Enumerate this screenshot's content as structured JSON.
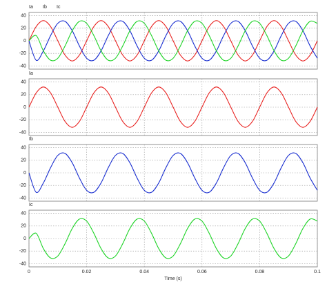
{
  "chart_data": [
    {
      "type": "line",
      "x": [
        0,
        0.0025,
        0.005,
        0.0075,
        0.01,
        0.0125,
        0.015,
        0.0175,
        0.02,
        0.0225,
        0.025,
        0.0275,
        0.03,
        0.0325,
        0.035,
        0.0375,
        0.04,
        0.0425,
        0.045,
        0.0475,
        0.05,
        0.0525,
        0.055,
        0.0575,
        0.06,
        0.0625,
        0.065,
        0.0675,
        0.07,
        0.0725,
        0.075,
        0.0775,
        0.08,
        0.0825,
        0.085,
        0.0875,
        0.09,
        0.0925,
        0.095,
        0.0975,
        0.1
      ],
      "series": [
        {
          "name": "Ia",
          "color": "#e8201e",
          "values": [
            0,
            22.6,
            32,
            22.6,
            0,
            -22.6,
            -32,
            -22.6,
            0,
            22.6,
            32,
            22.6,
            0,
            -22.6,
            -32,
            -22.6,
            0,
            22.6,
            32,
            22.6,
            0,
            -22.6,
            -32,
            -22.6,
            0,
            22.6,
            32,
            22.6,
            0,
            -22.6,
            -32,
            -22.6,
            0,
            22.6,
            32,
            22.6,
            0,
            -22.6,
            -32,
            -22.6,
            0
          ]
        },
        {
          "name": "Ib",
          "color": "#1a2fd0",
          "values": [
            0,
            -30.9,
            -16,
            8.3,
            27.7,
            30.9,
            16,
            -8.3,
            -27.7,
            -30.9,
            -16,
            8.3,
            27.7,
            30.9,
            16,
            -8.3,
            -27.7,
            -30.9,
            -16,
            8.3,
            27.7,
            30.9,
            16,
            -8.3,
            -27.7,
            -30.9,
            -16,
            8.3,
            27.7,
            30.9,
            16,
            -8.3,
            -27.7,
            -30.9,
            -16,
            8.3,
            27.7,
            30.9,
            16,
            -8.3,
            -27.7
          ]
        },
        {
          "name": "Ic",
          "color": "#22d42a",
          "values": [
            0,
            8.3,
            -16,
            -30.9,
            -27.7,
            -8.3,
            16,
            30.9,
            27.7,
            8.3,
            -16,
            -30.9,
            -27.7,
            -8.3,
            16,
            30.9,
            27.7,
            8.3,
            -16,
            -30.9,
            -27.7,
            -8.3,
            16,
            30.9,
            27.7,
            8.3,
            -16,
            -30.9,
            -27.7,
            -8.3,
            16,
            30.9,
            27.7,
            8.3,
            -16,
            -30.9,
            -27.7,
            -8.3,
            16,
            30.9,
            27.7
          ]
        }
      ],
      "xlim": [
        0,
        0.1
      ],
      "xticks": [
        0,
        0.02,
        0.04,
        0.06,
        0.08,
        0.1
      ],
      "ylim": [
        -45,
        45
      ],
      "yticks": [
        40,
        20,
        0,
        -20,
        -40
      ],
      "grid": true
    },
    {
      "type": "line",
      "x": [
        0,
        0.0025,
        0.005,
        0.0075,
        0.01,
        0.0125,
        0.015,
        0.0175,
        0.02,
        0.0225,
        0.025,
        0.0275,
        0.03,
        0.0325,
        0.035,
        0.0375,
        0.04,
        0.0425,
        0.045,
        0.0475,
        0.05,
        0.0525,
        0.055,
        0.0575,
        0.06,
        0.0625,
        0.065,
        0.0675,
        0.07,
        0.0725,
        0.075,
        0.0775,
        0.08,
        0.0825,
        0.085,
        0.0875,
        0.09,
        0.0925,
        0.095,
        0.0975,
        0.1
      ],
      "series": [
        {
          "name": "Ia",
          "color": "#e8201e",
          "values": [
            0,
            22.6,
            32,
            22.6,
            0,
            -22.6,
            -32,
            -22.6,
            0,
            22.6,
            32,
            22.6,
            0,
            -22.6,
            -32,
            -22.6,
            0,
            22.6,
            32,
            22.6,
            0,
            -22.6,
            -32,
            -22.6,
            0,
            22.6,
            32,
            22.6,
            0,
            -22.6,
            -32,
            -22.6,
            0,
            22.6,
            32,
            22.6,
            0,
            -22.6,
            -32,
            -22.6,
            0
          ]
        }
      ],
      "xlim": [
        0,
        0.1
      ],
      "xticks": [
        0,
        0.02,
        0.04,
        0.06,
        0.08,
        0.1
      ],
      "ylim": [
        -45,
        45
      ],
      "yticks": [
        40,
        20,
        0,
        -20,
        -40
      ],
      "grid": true
    },
    {
      "type": "line",
      "x": [
        0,
        0.0025,
        0.005,
        0.0075,
        0.01,
        0.0125,
        0.015,
        0.0175,
        0.02,
        0.0225,
        0.025,
        0.0275,
        0.03,
        0.0325,
        0.035,
        0.0375,
        0.04,
        0.0425,
        0.045,
        0.0475,
        0.05,
        0.0525,
        0.055,
        0.0575,
        0.06,
        0.0625,
        0.065,
        0.0675,
        0.07,
        0.0725,
        0.075,
        0.0775,
        0.08,
        0.0825,
        0.085,
        0.0875,
        0.09,
        0.0925,
        0.095,
        0.0975,
        0.1
      ],
      "series": [
        {
          "name": "Ib",
          "color": "#1a2fd0",
          "values": [
            0,
            -30.9,
            -16,
            8.3,
            27.7,
            30.9,
            16,
            -8.3,
            -27.7,
            -30.9,
            -16,
            8.3,
            27.7,
            30.9,
            16,
            -8.3,
            -27.7,
            -30.9,
            -16,
            8.3,
            27.7,
            30.9,
            16,
            -8.3,
            -27.7,
            -30.9,
            -16,
            8.3,
            27.7,
            30.9,
            16,
            -8.3,
            -27.7,
            -30.9,
            -16,
            8.3,
            27.7,
            30.9,
            16,
            -8.3,
            -27.7
          ]
        }
      ],
      "xlim": [
        0,
        0.1
      ],
      "xticks": [
        0,
        0.02,
        0.04,
        0.06,
        0.08,
        0.1
      ],
      "ylim": [
        -45,
        45
      ],
      "yticks": [
        40,
        20,
        0,
        -20,
        -40
      ],
      "grid": true
    },
    {
      "type": "line",
      "x": [
        0,
        0.0025,
        0.005,
        0.0075,
        0.01,
        0.0125,
        0.015,
        0.0175,
        0.02,
        0.0225,
        0.025,
        0.0275,
        0.03,
        0.0325,
        0.035,
        0.0375,
        0.04,
        0.0425,
        0.045,
        0.0475,
        0.05,
        0.0525,
        0.055,
        0.0575,
        0.06,
        0.0625,
        0.065,
        0.0675,
        0.07,
        0.0725,
        0.075,
        0.0775,
        0.08,
        0.0825,
        0.085,
        0.0875,
        0.09,
        0.0925,
        0.095,
        0.0975,
        0.1
      ],
      "series": [
        {
          "name": "Ic",
          "color": "#22d42a",
          "values": [
            0,
            8.3,
            -16,
            -30.9,
            -27.7,
            -8.3,
            16,
            30.9,
            27.7,
            8.3,
            -16,
            -30.9,
            -27.7,
            -8.3,
            16,
            30.9,
            27.7,
            8.3,
            -16,
            -30.9,
            -27.7,
            -8.3,
            16,
            30.9,
            27.7,
            8.3,
            -16,
            -30.9,
            -27.7,
            -8.3,
            16,
            30.9,
            27.7,
            8.3,
            -16,
            -30.9,
            -27.7,
            -8.3,
            16,
            30.9,
            27.7
          ]
        }
      ],
      "xlim": [
        0,
        0.1
      ],
      "xticks": [
        0,
        0.02,
        0.04,
        0.06,
        0.08,
        0.1
      ],
      "ylim": [
        -45,
        45
      ],
      "yticks": [
        40,
        20,
        0,
        -20,
        -40
      ],
      "grid": true,
      "xlabel": "Time (s)",
      "xtick_labels": true
    }
  ]
}
